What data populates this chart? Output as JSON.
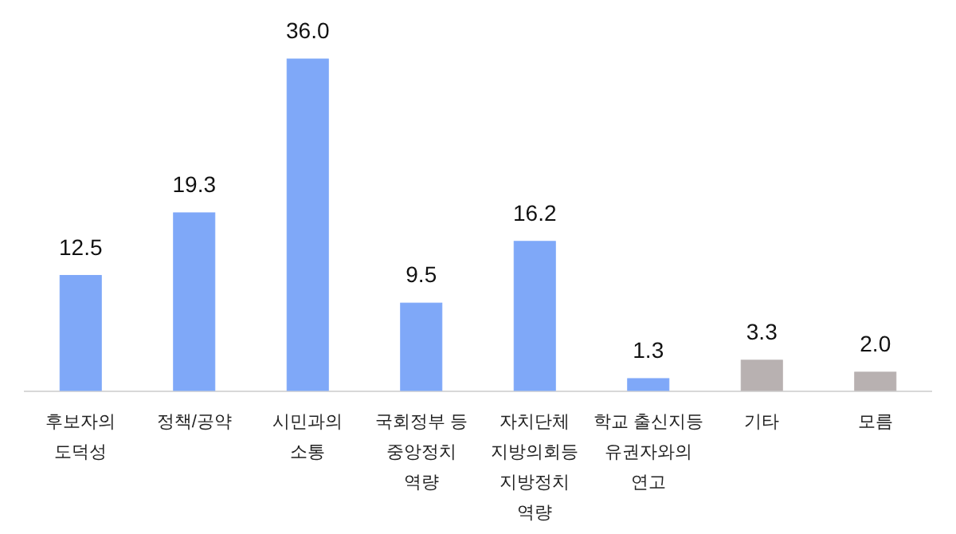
{
  "chart_data": {
    "type": "bar",
    "categories": [
      "후보자의\n도덕성",
      "정책/공약",
      "시민과의\n소통",
      "국회정부 등\n중앙정치\n역량",
      "자치단체\n지방의회등\n지방정치\n역량",
      "학교 출신지등\n유권자와의\n연고",
      "기타",
      "모름"
    ],
    "values": [
      12.5,
      19.3,
      36.0,
      9.5,
      16.2,
      1.3,
      3.3,
      2.0
    ],
    "colors": [
      "#7fa8f8",
      "#7fa8f8",
      "#7fa8f8",
      "#7fa8f8",
      "#7fa8f8",
      "#7fa8f8",
      "#b8b1b1",
      "#b8b1b1"
    ],
    "value_labels": [
      "12.5",
      "19.3",
      "36.0",
      "9.5",
      "16.2",
      "1.3",
      "3.3",
      "2.0"
    ]
  }
}
